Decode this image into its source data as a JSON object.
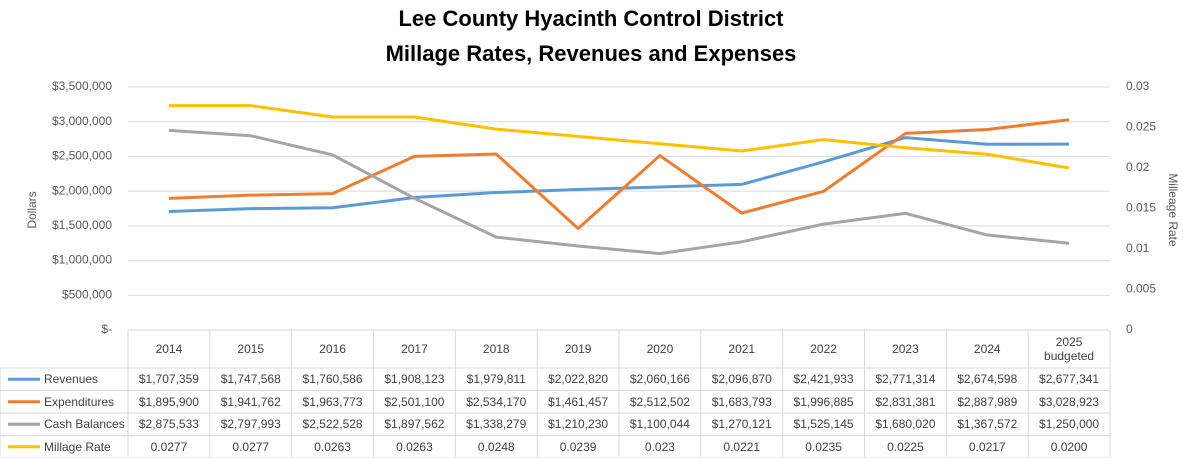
{
  "chart_data": {
    "type": "line",
    "title": "Lee County Hyacinth Control District",
    "subtitle": "Millage Rates, Revenues and Expenses",
    "y_label": "Dollars",
    "y2_label": "Milleage Rate",
    "categories": [
      "2014",
      "2015",
      "2016",
      "2017",
      "2018",
      "2019",
      "2020",
      "2021",
      "2022",
      "2023",
      "2024",
      "2025 budgeted"
    ],
    "ylim": [
      0,
      3500000
    ],
    "yticks": [
      {
        "value": 0,
        "label": "$-"
      },
      {
        "value": 500000,
        "label": "$500,000"
      },
      {
        "value": 1000000,
        "label": "$1,000,000"
      },
      {
        "value": 1500000,
        "label": "$1,500,000"
      },
      {
        "value": 2000000,
        "label": "$2,000,000"
      },
      {
        "value": 2500000,
        "label": "$2,500,000"
      },
      {
        "value": 3000000,
        "label": "$3,000,000"
      },
      {
        "value": 3500000,
        "label": "$3,500,000"
      }
    ],
    "y2lim": [
      0,
      0.03
    ],
    "y2ticks": [
      0,
      0.005,
      0.01,
      0.015,
      0.02,
      0.025,
      0.03
    ],
    "grid": true,
    "data_table": true,
    "series": [
      {
        "name": "Revenues",
        "color": "#5b9bd5",
        "values": [
          1707359,
          1747568,
          1760586,
          1908123,
          1979811,
          2022820,
          2060166,
          2096870,
          2421933,
          2771314,
          2674598,
          2677341
        ],
        "value_labels": [
          "$1,707,359",
          "$1,747,568",
          "$1,760,586",
          "$1,908,123",
          "$1,979,811",
          "$2,022,820",
          "$2,060,166",
          "$2,096,870",
          "$2,421,933",
          "$2,771,314",
          "$2,674,598",
          "$2,677,341"
        ]
      },
      {
        "name": "Expenditures",
        "color": "#ed7d31",
        "values": [
          1895900,
          1941762,
          1963773,
          2501100,
          2534170,
          1461457,
          2512502,
          1683793,
          1996885,
          2831381,
          2887989,
          3028923
        ],
        "value_labels": [
          "$1,895,900",
          "$1,941,762",
          "$1,963,773",
          "$2,501,100",
          "$2,534,170",
          "$1,461,457",
          "$2,512,502",
          "$1,683,793",
          "$1,996,885",
          "$2,831,381",
          "$2,887,989",
          "$3,028,923"
        ]
      },
      {
        "name": "Cash Balances",
        "color": "#a5a5a5",
        "values": [
          2875533,
          2797993,
          2522528,
          1897562,
          1338279,
          1210230,
          1100044,
          1270121,
          1525145,
          1680020,
          1367572,
          1250000
        ],
        "value_labels": [
          "$2,875,533",
          "$2,797,993",
          "$2,522,528",
          "$1,897,562",
          "$1,338,279",
          "$1,210,230",
          "$1,100,044",
          "$1,270,121",
          "$1,525,145",
          "$1,680,020",
          "$1,367,572",
          "$1,250,000"
        ]
      },
      {
        "name": "Millage Rate",
        "color": "#ffc000",
        "axis": "y2",
        "values": [
          0.0277,
          0.0277,
          0.0263,
          0.0263,
          0.0248,
          0.0239,
          0.023,
          0.0221,
          0.0235,
          0.0225,
          0.0217,
          0.02
        ],
        "value_labels": [
          "0.0277",
          "0.0277",
          "0.0263",
          "0.0263",
          "0.0248",
          "0.0239",
          "0.023",
          "0.0221",
          "0.0235",
          "0.0225",
          "0.0217",
          "0.0200"
        ]
      }
    ]
  }
}
